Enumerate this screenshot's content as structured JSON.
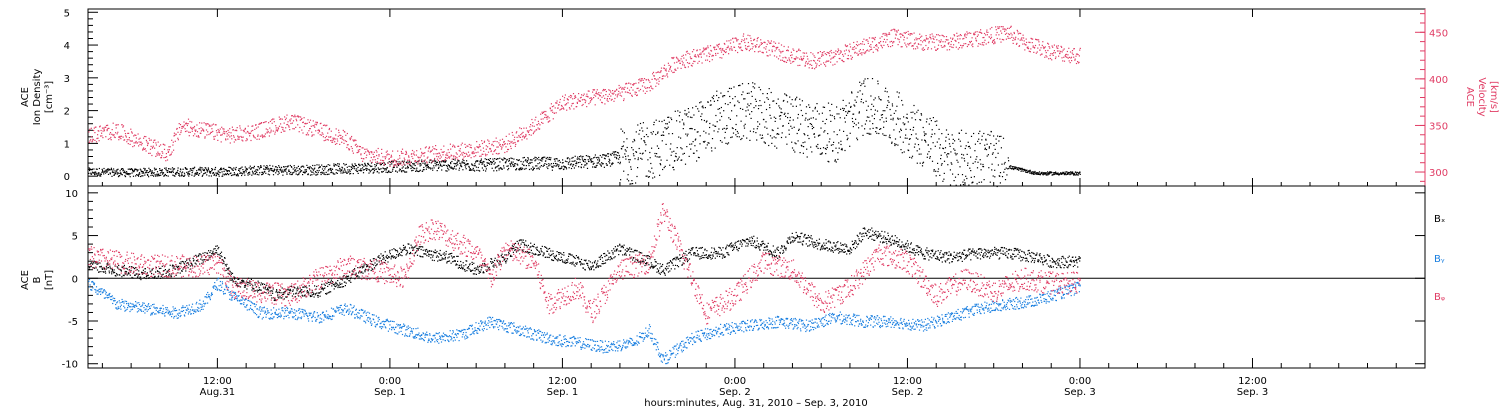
{
  "colors": {
    "black": "#000000",
    "red": "#e03c64",
    "blue": "#1a7fe0",
    "white": "#ffffff"
  },
  "chart_data": [
    {
      "type": "scatter",
      "panel": "plasma",
      "ylabel_left": [
        "ACE",
        "Ion Density",
        "[cm⁻³]"
      ],
      "ylabel_right": [
        "ACE",
        "Velocity",
        "[km/s]"
      ],
      "ylim_left": [
        -0.3,
        5.1
      ],
      "yticks_left": [
        "0",
        "1",
        "2",
        "3",
        "4",
        "5"
      ],
      "ylim_right": [
        285,
        475
      ],
      "yticks_right": [
        "300",
        "350",
        "400",
        "450"
      ],
      "xlim_hours": [
        3,
        96
      ],
      "data_end_hours": 72,
      "series": [
        {
          "axis": "left",
          "color": "#000000",
          "x": [
            3,
            6,
            9,
            12,
            15,
            18,
            21,
            24,
            27,
            30,
            33,
            36,
            39,
            42,
            45,
            47,
            49,
            51,
            53,
            55,
            57,
            59,
            61,
            63,
            65,
            67,
            69,
            72
          ],
          "y": [
            0.15,
            0.12,
            0.15,
            0.15,
            0.2,
            0.2,
            0.25,
            0.3,
            0.35,
            0.35,
            0.4,
            0.4,
            0.5,
            0.8,
            1.3,
            1.8,
            2.0,
            1.7,
            1.5,
            1.3,
            2.2,
            1.8,
            1.2,
            0.5,
            0.6,
            0.3,
            0.1,
            0.1
          ]
        },
        {
          "axis": "right",
          "color": "#e03c64",
          "x": [
            3,
            5,
            7,
            8.5,
            9.5,
            11,
            13,
            15,
            17,
            19,
            21,
            22,
            24,
            27,
            30,
            32,
            34,
            36,
            38,
            40,
            42,
            44,
            45.5,
            47,
            48.5,
            50,
            52,
            53.5,
            55,
            57,
            59,
            61,
            63,
            65,
            67,
            68,
            69,
            70,
            72
          ],
          "y": [
            340,
            345,
            330,
            320,
            350,
            345,
            340,
            345,
            355,
            345,
            335,
            320,
            315,
            320,
            325,
            330,
            350,
            375,
            380,
            385,
            395,
            420,
            425,
            430,
            440,
            435,
            425,
            420,
            425,
            435,
            445,
            440,
            440,
            445,
            450,
            440,
            435,
            430,
            425
          ]
        }
      ]
    },
    {
      "type": "scatter",
      "panel": "magnetic field",
      "ylabel_left": [
        "ACE",
        "B",
        "[nT]"
      ],
      "ylim": [
        -10.5,
        10.8
      ],
      "yticks": [
        "-10",
        "-5",
        "0",
        "5",
        "10"
      ],
      "legend": [
        "Bₓ",
        "Bᵧ",
        "Bᵩ"
      ],
      "legend_position": "right",
      "xlim_hours": [
        3,
        96
      ],
      "data_end_hours": 72,
      "series": [
        {
          "name": "Bx",
          "color": "#000000",
          "x": [
            3,
            5,
            7,
            9,
            11,
            12,
            13,
            15,
            16,
            17,
            19,
            21,
            22,
            23,
            25,
            28,
            30,
            32,
            33,
            35,
            37,
            38,
            40,
            42,
            43,
            45,
            47,
            49,
            51,
            52,
            54,
            56,
            57,
            59,
            61,
            63,
            65,
            67,
            69,
            70,
            72
          ],
          "y": [
            1.5,
            1.0,
            0.5,
            1.0,
            2.5,
            3.5,
            0.0,
            -1.0,
            -2.0,
            -1.5,
            -1.5,
            0.0,
            1.0,
            2.0,
            3.5,
            2.5,
            1.0,
            2.5,
            4.0,
            3.0,
            2.0,
            1.5,
            3.5,
            2.0,
            1.0,
            3.0,
            3.0,
            4.5,
            3.0,
            5.0,
            4.0,
            3.5,
            5.5,
            4.5,
            3.0,
            2.5,
            3.0,
            3.0,
            2.5,
            2.0,
            2.0
          ]
        },
        {
          "name": "By",
          "color": "#1a7fe0",
          "x": [
            3,
            5,
            7,
            9,
            11,
            12,
            13,
            15,
            17,
            19,
            21,
            23,
            25,
            27,
            29,
            31,
            33,
            35,
            37,
            39,
            41,
            42,
            43,
            45,
            47,
            49,
            51,
            53,
            55,
            57,
            59,
            61,
            63,
            65,
            67,
            69,
            71,
            72
          ],
          "y": [
            -0.5,
            -3.0,
            -3.5,
            -4.0,
            -3.0,
            -0.5,
            -2.0,
            -4.0,
            -4.0,
            -4.5,
            -3.5,
            -5.0,
            -6.0,
            -7.0,
            -6.5,
            -5.0,
            -6.0,
            -7.0,
            -7.5,
            -8.0,
            -7.5,
            -6.0,
            -9.5,
            -7.0,
            -6.0,
            -5.5,
            -5.0,
            -5.5,
            -4.5,
            -5.0,
            -5.0,
            -5.5,
            -4.5,
            -3.5,
            -3.0,
            -2.5,
            -1.5,
            -1.0
          ]
        },
        {
          "name": "Bz",
          "color": "#e03c64",
          "x": [
            3,
            5,
            7,
            9,
            11,
            12,
            13,
            15,
            17,
            19,
            21,
            23,
            25,
            26,
            27,
            28,
            30,
            31,
            32,
            34,
            35,
            37,
            38,
            40,
            42,
            43,
            44,
            45,
            46,
            48,
            50,
            52,
            54,
            56,
            58,
            60,
            62,
            64,
            66,
            68,
            70,
            72
          ],
          "y": [
            2.5,
            2.0,
            1.5,
            1.5,
            1.5,
            2.0,
            -1.0,
            -1.5,
            -2.0,
            0.0,
            1.5,
            1.0,
            0.0,
            5.0,
            6.0,
            5.0,
            3.0,
            0.0,
            3.5,
            2.0,
            -3.0,
            -1.0,
            -4.0,
            1.0,
            2.0,
            8.0,
            4.0,
            0.0,
            -4.0,
            -2.0,
            2.0,
            1.0,
            -3.0,
            -1.0,
            3.0,
            2.0,
            -2.0,
            0.0,
            -1.5,
            0.0,
            -0.5,
            -0.5
          ]
        }
      ]
    }
  ],
  "x_axis": {
    "tick_lines": [
      {
        "pos": 12,
        "time": "12:00",
        "day": "Aug.31"
      },
      {
        "pos": 24,
        "time": "0:00",
        "day": "Sep. 1"
      },
      {
        "pos": 36,
        "time": "12:00",
        "day": "Sep. 1"
      },
      {
        "pos": 48,
        "time": "0:00",
        "day": "Sep. 2"
      },
      {
        "pos": 60,
        "time": "12:00",
        "day": "Sep. 2"
      },
      {
        "pos": 72,
        "time": "0:00",
        "day": "Sep. 3"
      },
      {
        "pos": 84,
        "time": "12:00",
        "day": "Sep. 3"
      }
    ],
    "xlabel": "hours:minutes, Aug. 31, 2010 – Sep.  3, 2010"
  }
}
